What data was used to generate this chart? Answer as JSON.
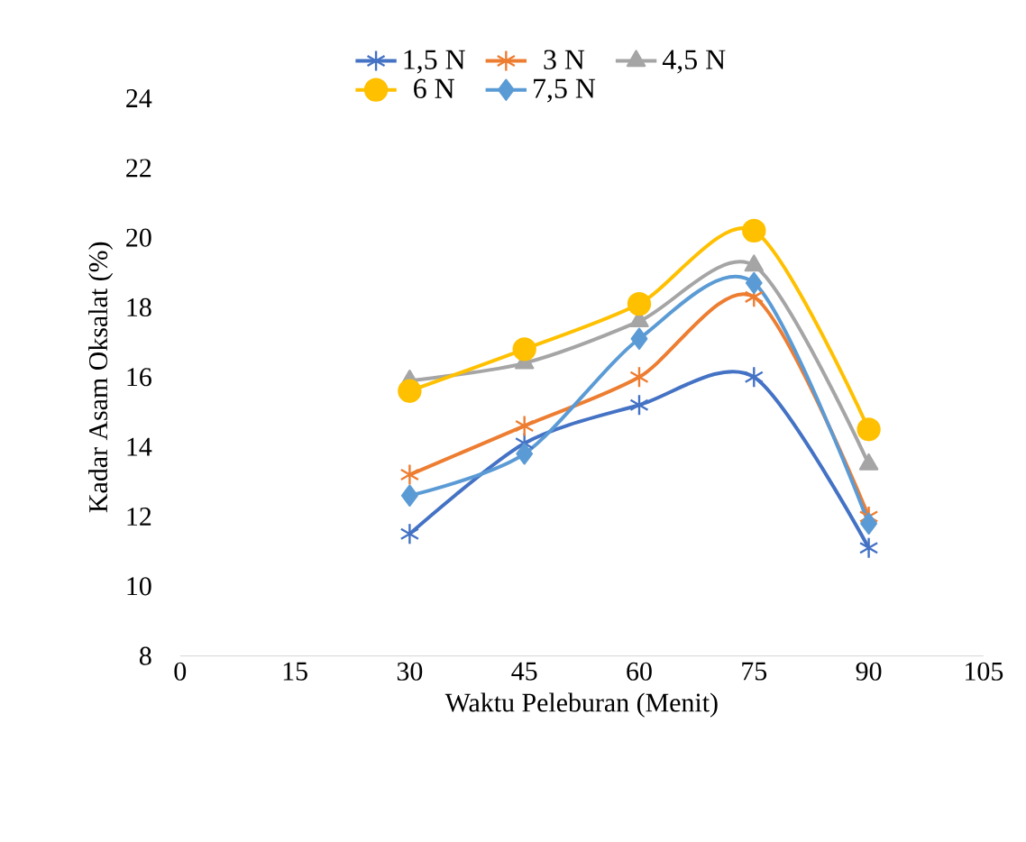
{
  "chart_data": {
    "type": "line",
    "xlabel": "Waktu Peleburan (Menit)",
    "ylabel": "Kadar Asam Oksalat (%)",
    "x": [
      30,
      45,
      60,
      75,
      90
    ],
    "xlim": [
      0,
      105
    ],
    "xticks": [
      0,
      15,
      30,
      45,
      60,
      75,
      90,
      105
    ],
    "ylim": [
      8,
      24
    ],
    "yticks": [
      8,
      10,
      12,
      14,
      16,
      18,
      20,
      22,
      24
    ],
    "legend": "top",
    "grid": false,
    "series": [
      {
        "name": "1,5 N",
        "color": "#4472c4",
        "marker": "cross",
        "values": [
          11.5,
          14.1,
          15.2,
          16.0,
          11.1
        ]
      },
      {
        "name": "3 N",
        "color": "#ed7d31",
        "marker": "cross",
        "values": [
          13.2,
          14.6,
          16.0,
          18.3,
          12.0
        ]
      },
      {
        "name": "4,5 N",
        "color": "#a5a5a5",
        "marker": "triangle",
        "values": [
          15.9,
          16.4,
          17.6,
          19.2,
          13.5
        ]
      },
      {
        "name": "6 N",
        "color": "#ffc000",
        "marker": "circle",
        "values": [
          15.6,
          16.8,
          18.1,
          20.2,
          14.5
        ]
      },
      {
        "name": "7,5 N",
        "color": "#5b9bd5",
        "marker": "diamond",
        "values": [
          12.6,
          13.8,
          17.1,
          18.7,
          11.8
        ]
      }
    ]
  }
}
